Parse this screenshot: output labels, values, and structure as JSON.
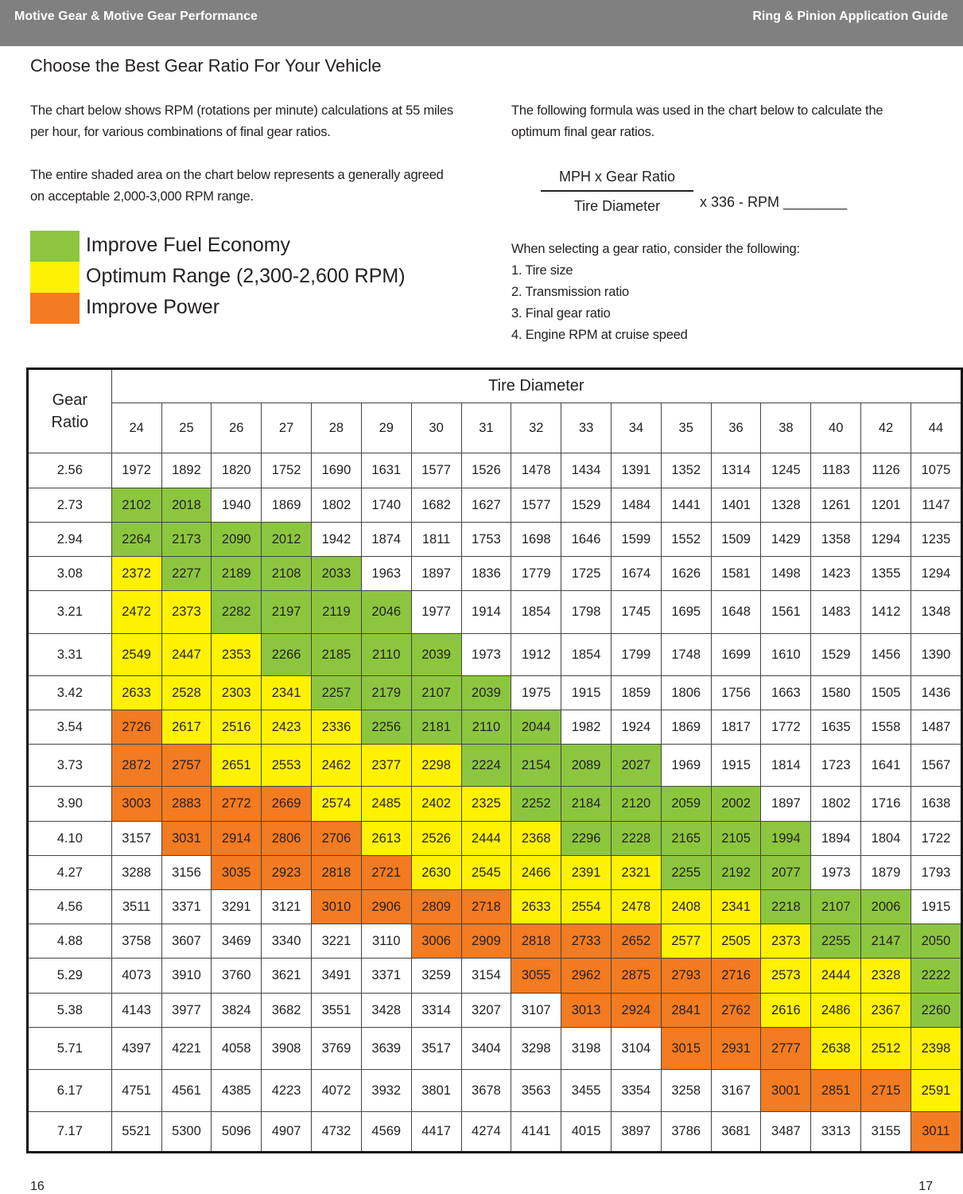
{
  "header": {
    "left": "Motive Gear & Motive Gear Performance",
    "right": "Ring & Pinion Application Guide"
  },
  "title": "Choose the Best Gear Ratio For Your Vehicle",
  "intro": [
    [
      "The chart below shows RPM (rotations per minute) calculations at 55 miles",
      "per hour, for various combinations of final gear ratios."
    ],
    [
      "The entire shaded area on the chart below represents a generally agreed",
      "on acceptable 2,000-3,000 RPM range."
    ]
  ],
  "formula": {
    "intro": [
      "The following formula was used in the chart below to calculate the",
      "optimum final gear ratios."
    ],
    "numerator": "MPH x Gear Ratio",
    "denominator": "Tire Diameter",
    "suffix": "x 336 - RPM ________"
  },
  "considerations": {
    "intro": "When selecting a gear ratio, consider the following:",
    "items": [
      "1. Tire size",
      "2. Transmission ratio",
      "3. Final gear ratio",
      "4. Engine RPM at cruise speed"
    ]
  },
  "legend": [
    {
      "label": "Improve Fuel Economy",
      "color": "#8cc63f"
    },
    {
      "label": "Optimum Range (2,300-2,600 RPM)",
      "color": "#fff200"
    },
    {
      "label": "Improve Power",
      "color": "#f37b21"
    }
  ],
  "table": {
    "group_header": "Tire Diameter",
    "row_header": "Gear Ratio",
    "tire_diameters": [
      24,
      25,
      26,
      27,
      28,
      29,
      30,
      31,
      32,
      33,
      34,
      35,
      36,
      38,
      40,
      42,
      44
    ],
    "rows": [
      {
        "gear_ratio": "2.56",
        "rpm": [
          1972,
          1892,
          1820,
          1752,
          1690,
          1631,
          1577,
          1526,
          1478,
          1434,
          1391,
          1352,
          1314,
          1245,
          1183,
          1126,
          1075
        ],
        "zone": [
          null,
          null,
          null,
          null,
          null,
          null,
          null,
          null,
          null,
          null,
          null,
          null,
          null,
          null,
          null,
          null,
          null
        ]
      },
      {
        "gear_ratio": "2.73",
        "rpm": [
          2102,
          2018,
          1940,
          1869,
          1802,
          1740,
          1682,
          1627,
          1577,
          1529,
          1484,
          1441,
          1401,
          1328,
          1261,
          1201,
          1147
        ],
        "zone": [
          0,
          0,
          null,
          null,
          null,
          null,
          null,
          null,
          null,
          null,
          null,
          null,
          null,
          null,
          null,
          null,
          null
        ]
      },
      {
        "gear_ratio": "2.94",
        "rpm": [
          2264,
          2173,
          2090,
          2012,
          1942,
          1874,
          1811,
          1753,
          1698,
          1646,
          1599,
          1552,
          1509,
          1429,
          1358,
          1294,
          1235
        ],
        "zone": [
          0,
          0,
          0,
          0,
          null,
          null,
          null,
          null,
          null,
          null,
          null,
          null,
          null,
          null,
          null,
          null,
          null
        ]
      },
      {
        "gear_ratio": "3.08",
        "rpm": [
          2372,
          2277,
          2189,
          2108,
          2033,
          1963,
          1897,
          1836,
          1779,
          1725,
          1674,
          1626,
          1581,
          1498,
          1423,
          1355,
          1294
        ],
        "zone": [
          1,
          0,
          0,
          0,
          0,
          null,
          null,
          null,
          null,
          null,
          null,
          null,
          null,
          null,
          null,
          null,
          null
        ]
      },
      {
        "gear_ratio": "3.21",
        "rpm": [
          2472,
          2373,
          2282,
          2197,
          2119,
          2046,
          1977,
          1914,
          1854,
          1798,
          1745,
          1695,
          1648,
          1561,
          1483,
          1412,
          1348
        ],
        "zone": [
          1,
          1,
          0,
          0,
          0,
          0,
          null,
          null,
          null,
          null,
          null,
          null,
          null,
          null,
          null,
          null,
          null
        ]
      },
      {
        "gear_ratio": "3.31",
        "rpm": [
          2549,
          2447,
          2353,
          2266,
          2185,
          2110,
          2039,
          1973,
          1912,
          1854,
          1799,
          1748,
          1699,
          1610,
          1529,
          1456,
          1390
        ],
        "zone": [
          1,
          1,
          1,
          0,
          0,
          0,
          0,
          null,
          null,
          null,
          null,
          null,
          null,
          null,
          null,
          null,
          null
        ]
      },
      {
        "gear_ratio": "3.42",
        "rpm": [
          2633,
          2528,
          2303,
          2341,
          2257,
          2179,
          2107,
          2039,
          1975,
          1915,
          1859,
          1806,
          1756,
          1663,
          1580,
          1505,
          1436
        ],
        "zone": [
          1,
          1,
          1,
          1,
          0,
          0,
          0,
          0,
          null,
          null,
          null,
          null,
          null,
          null,
          null,
          null,
          null
        ]
      },
      {
        "gear_ratio": "3.54",
        "rpm": [
          2726,
          2617,
          2516,
          2423,
          2336,
          2256,
          2181,
          2110,
          2044,
          1982,
          1924,
          1869,
          1817,
          1772,
          1635,
          1558,
          1487
        ],
        "zone": [
          2,
          1,
          1,
          1,
          1,
          0,
          0,
          0,
          0,
          null,
          null,
          null,
          null,
          null,
          null,
          null,
          null
        ]
      },
      {
        "gear_ratio": "3.73",
        "rpm": [
          2872,
          2757,
          2651,
          2553,
          2462,
          2377,
          2298,
          2224,
          2154,
          2089,
          2027,
          1969,
          1915,
          1814,
          1723,
          1641,
          1567
        ],
        "zone": [
          2,
          2,
          1,
          1,
          1,
          1,
          1,
          0,
          0,
          0,
          0,
          null,
          null,
          null,
          null,
          null,
          null
        ]
      },
      {
        "gear_ratio": "3.90",
        "rpm": [
          3003,
          2883,
          2772,
          2669,
          2574,
          2485,
          2402,
          2325,
          2252,
          2184,
          2120,
          2059,
          2002,
          1897,
          1802,
          1716,
          1638
        ],
        "zone": [
          2,
          2,
          2,
          2,
          1,
          1,
          1,
          1,
          0,
          0,
          0,
          0,
          0,
          null,
          null,
          null,
          null
        ]
      },
      {
        "gear_ratio": "4.10",
        "rpm": [
          3157,
          3031,
          2914,
          2806,
          2706,
          2613,
          2526,
          2444,
          2368,
          2296,
          2228,
          2165,
          2105,
          1994,
          1894,
          1804,
          1722
        ],
        "zone": [
          null,
          2,
          2,
          2,
          2,
          1,
          1,
          1,
          1,
          0,
          0,
          0,
          0,
          0,
          null,
          null,
          null
        ]
      },
      {
        "gear_ratio": "4.27",
        "rpm": [
          3288,
          3156,
          3035,
          2923,
          2818,
          2721,
          2630,
          2545,
          2466,
          2391,
          2321,
          2255,
          2192,
          2077,
          1973,
          1879,
          1793
        ],
        "zone": [
          null,
          null,
          2,
          2,
          2,
          2,
          1,
          1,
          1,
          1,
          1,
          0,
          0,
          0,
          null,
          null,
          null
        ]
      },
      {
        "gear_ratio": "4.56",
        "rpm": [
          3511,
          3371,
          3291,
          3121,
          3010,
          2906,
          2809,
          2718,
          2633,
          2554,
          2478,
          2408,
          2341,
          2218,
          2107,
          2006,
          1915
        ],
        "zone": [
          null,
          null,
          null,
          null,
          2,
          2,
          2,
          2,
          1,
          1,
          1,
          1,
          1,
          0,
          0,
          0,
          null
        ]
      },
      {
        "gear_ratio": "4.88",
        "rpm": [
          3758,
          3607,
          3469,
          3340,
          3221,
          3110,
          3006,
          2909,
          2818,
          2733,
          2652,
          2577,
          2505,
          2373,
          2255,
          2147,
          2050
        ],
        "zone": [
          null,
          null,
          null,
          null,
          null,
          null,
          2,
          2,
          2,
          2,
          2,
          1,
          1,
          1,
          0,
          0,
          0
        ]
      },
      {
        "gear_ratio": "5.29",
        "rpm": [
          4073,
          3910,
          3760,
          3621,
          3491,
          3371,
          3259,
          3154,
          3055,
          2962,
          2875,
          2793,
          2716,
          2573,
          2444,
          2328,
          2222
        ],
        "zone": [
          null,
          null,
          null,
          null,
          null,
          null,
          null,
          null,
          2,
          2,
          2,
          2,
          2,
          1,
          1,
          1,
          0
        ]
      },
      {
        "gear_ratio": "5.38",
        "rpm": [
          4143,
          3977,
          3824,
          3682,
          3551,
          3428,
          3314,
          3207,
          3107,
          3013,
          2924,
          2841,
          2762,
          2616,
          2486,
          2367,
          2260
        ],
        "zone": [
          null,
          null,
          null,
          null,
          null,
          null,
          null,
          null,
          null,
          2,
          2,
          2,
          2,
          1,
          1,
          1,
          0
        ]
      },
      {
        "gear_ratio": "5.71",
        "rpm": [
          4397,
          4221,
          4058,
          3908,
          3769,
          3639,
          3517,
          3404,
          3298,
          3198,
          3104,
          3015,
          2931,
          2777,
          2638,
          2512,
          2398
        ],
        "zone": [
          null,
          null,
          null,
          null,
          null,
          null,
          null,
          null,
          null,
          null,
          null,
          2,
          2,
          2,
          1,
          1,
          1
        ]
      },
      {
        "gear_ratio": "6.17",
        "rpm": [
          4751,
          4561,
          4385,
          4223,
          4072,
          3932,
          3801,
          3678,
          3563,
          3455,
          3354,
          3258,
          3167,
          3001,
          2851,
          2715,
          2591
        ],
        "zone": [
          null,
          null,
          null,
          null,
          null,
          null,
          null,
          null,
          null,
          null,
          null,
          null,
          null,
          2,
          2,
          2,
          1
        ]
      },
      {
        "gear_ratio": "7.17",
        "rpm": [
          5521,
          5300,
          5096,
          4907,
          4732,
          4569,
          4417,
          4274,
          4141,
          4015,
          3897,
          3786,
          3681,
          3487,
          3313,
          3155,
          3011
        ],
        "zone": [
          null,
          null,
          null,
          null,
          null,
          null,
          null,
          null,
          null,
          null,
          null,
          null,
          null,
          null,
          null,
          null,
          2
        ]
      }
    ]
  },
  "page_numbers": [
    "16",
    "17"
  ]
}
